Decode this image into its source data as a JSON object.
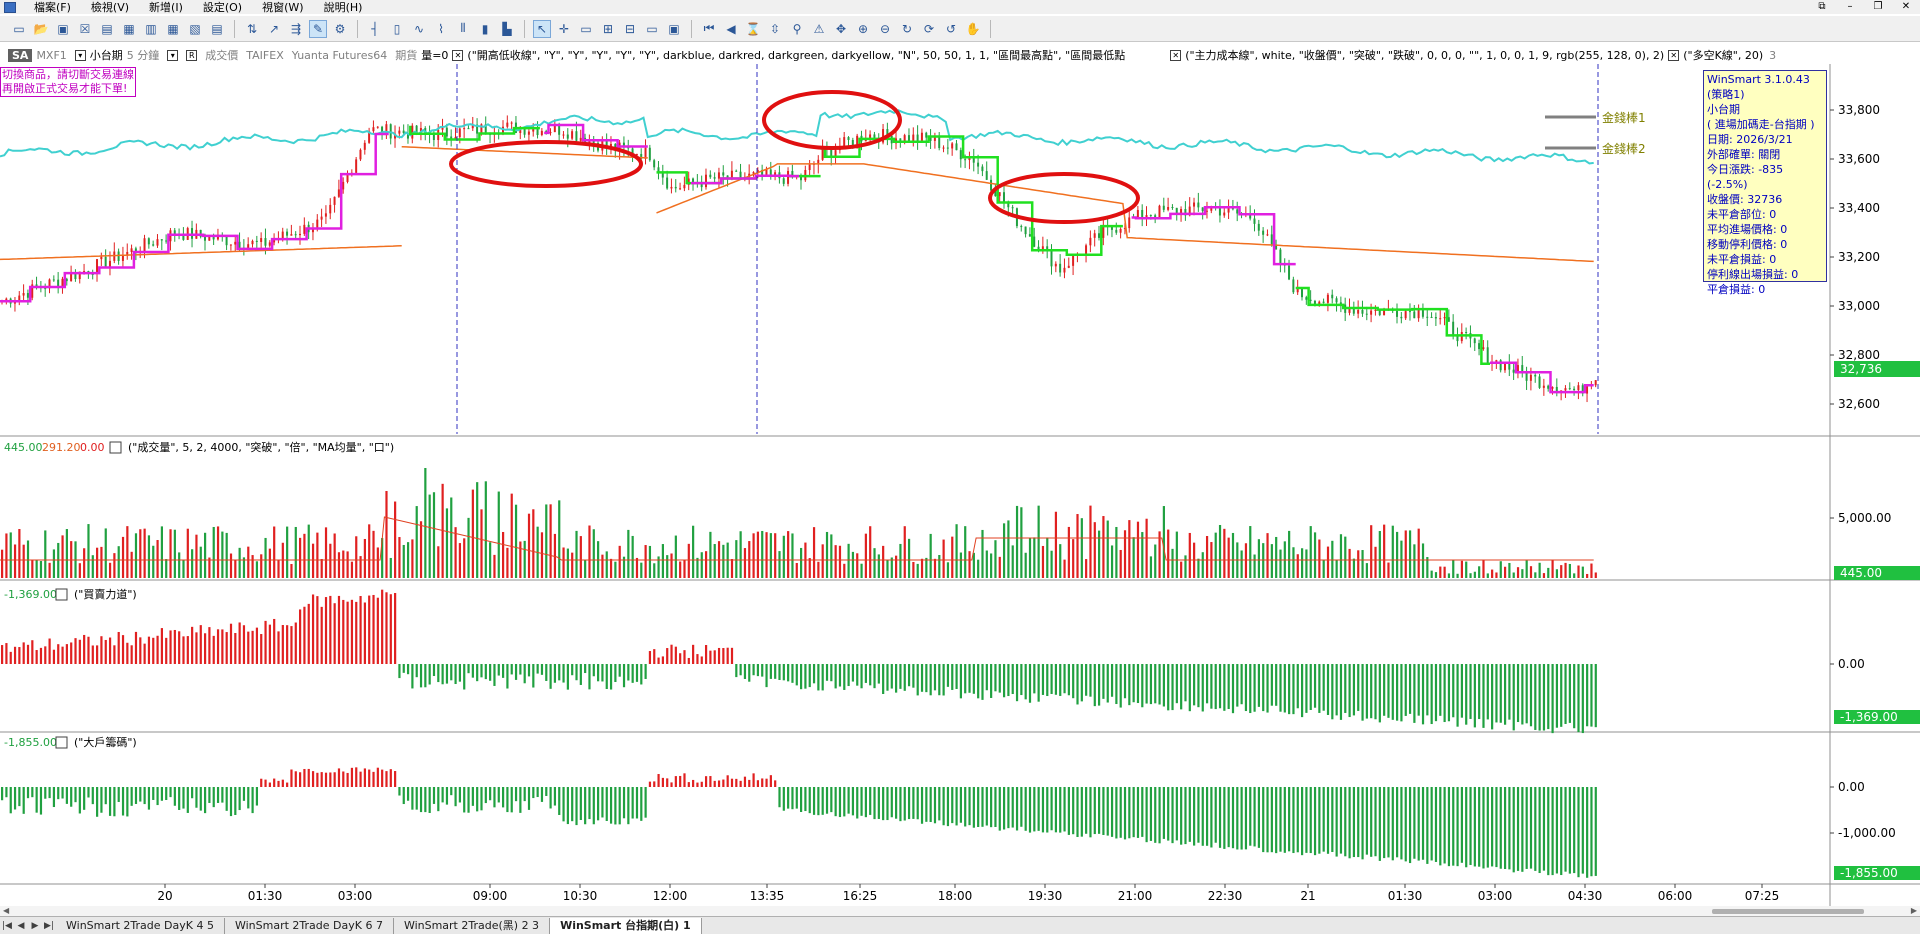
{
  "menubar": {
    "items": [
      "檔案(F)",
      "檢視(V)",
      "新增(I)",
      "設定(O)",
      "視窗(W)",
      "說明(H)"
    ],
    "window_controls": [
      "⧉",
      "–",
      "❐",
      "✕"
    ]
  },
  "toolbar": {
    "groups": [
      [
        "new-icon",
        "open-icon",
        "save-icon",
        "close-icon",
        "chart-icon",
        "table-icon",
        "layout-icon",
        "grid-icon",
        "quote-icon",
        "list-icon"
      ],
      [
        "indicator-icon",
        "draw-icon",
        "signal-icon",
        "strategy-icon",
        "settings-icon"
      ],
      [
        "bar-icon",
        "candle-icon",
        "line-icon",
        "tick-icon",
        "ohlc-icon",
        "volume-icon",
        "renko-icon"
      ],
      [
        "pointer-icon",
        "crosshair-icon",
        "text-icon",
        "zoom-in-icon",
        "zoom-out-icon",
        "window-icon",
        "panel-icon"
      ],
      [
        "first-icon",
        "prev-icon",
        "hourglass-icon",
        "updown-icon",
        "pin-icon",
        "alert-icon",
        "drag-icon",
        "zoom-icon",
        "magnify-icon",
        "refresh-icon",
        "reload-icon",
        "rotate-icon",
        "hand-icon"
      ]
    ]
  },
  "infobar": {
    "symbol": "SA",
    "product": "MXF1",
    "product_name": "小台期",
    "interval": "5 分鐘",
    "price_type": "成交價",
    "exchange": "TAIFEX",
    "broker": "Yuanta Futures64",
    "category": "期貨",
    "volume_label": "量=0",
    "indicator1": "(\"開高低收線\", \"Y\", \"Y\", \"Y\", \"Y\", \"Y\", darkblue, darkred, darkgreen, darkyellow, \"N\", 50, 50, 1, 1, \"區間最高點\", \"區間最低點",
    "indicator2": "(\"主力成本線\", white, \"收盤價\", \"突破\", \"跌破\", 0, 0, 0, \"\", 1, 0, 0, 1, 9, rgb(255, 128, 0), 2)",
    "indicator3": "(\"多空K線\", 20)",
    "indicator3_tail": "3"
  },
  "warning": [
    "切換商品，請切斷交易連線",
    "再開啟正式交易才能下單!"
  ],
  "infobox": {
    "lines": [
      "WinSmart 3.1.0.43",
      "(策略1)",
      "小台期",
      "( 進場加碼走-台指期 )",
      "日期: 2026/3/21",
      "外部確單: 關閉",
      "今日漲跌: -835 (-2.5%)",
      "收盤價: 32736",
      "未平倉部位: 0",
      "平均進場價格: 0",
      "移動停利價格: 0",
      "未平倉損益: 0",
      "停利線出場損益: 0",
      "平倉損益: 0"
    ]
  },
  "price_panel": {
    "y_ticks": [
      "33,800",
      "33,600",
      "33,400",
      "33,200",
      "33,000",
      "32,800",
      "32,600"
    ],
    "last_price": "32,736",
    "legend_gold1": "金錢棒1",
    "legend_gold2": "金錢棒2",
    "colors": {
      "cyan": "#40d0d0",
      "orange": "#f07020",
      "green": "#20e020",
      "magenta": "#e020e0",
      "up": "#e02020",
      "down": "#20a040",
      "circle": "#e01010",
      "vline": "#3030c0"
    }
  },
  "volume_panel": {
    "header_vals": [
      "445.00",
      "291.20",
      "0.00"
    ],
    "header": "(\"成交量\", 5, 2, 4000, \"突破\", \"倍\", \"MA均量\", \"口\")",
    "y_tick": "5,000.00",
    "last": "445.00"
  },
  "force_panel": {
    "header_val": "-1,369.00",
    "header": "(\"買賣力道\")",
    "y_tick": "0.00",
    "last": "-1,369.00"
  },
  "chip_panel": {
    "header_val": "-1,855.00",
    "header": "(\"大戶籌碼\")",
    "y_ticks": [
      "0.00",
      "-1,000.00"
    ],
    "last": "-1,855.00"
  },
  "time_axis": [
    "20",
    "01:30",
    "03:00",
    "09:00",
    "10:30",
    "12:00",
    "13:35",
    "16:25",
    "18:00",
    "19:30",
    "21:00",
    "22:30",
    "21",
    "01:30",
    "03:00",
    "04:30",
    "06:00",
    "07:25"
  ],
  "tabs": {
    "items": [
      "WinSmart 2Trade DayK 4 5",
      "WinSmart 2Trade DayK 6 7",
      "WinSmart 2Trade(黑) 2 3",
      "WinSmart 台指期(白) 1"
    ],
    "active": 3
  }
}
